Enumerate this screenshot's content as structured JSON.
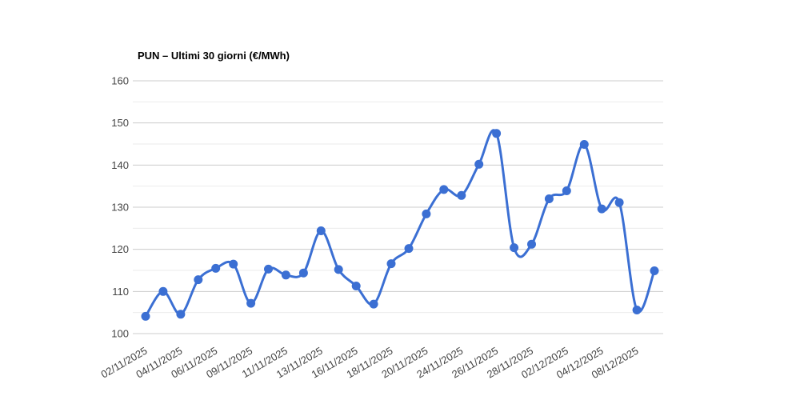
{
  "chart_data": {
    "type": "line",
    "title": "PUN – Ultimi 30 giorni (€/MWh)",
    "series": [
      {
        "name": "PUN",
        "values": [
          104.1,
          110.0,
          104.6,
          112.8,
          115.5,
          116.5,
          107.2,
          115.3,
          113.9,
          114.4,
          124.4,
          115.2,
          111.3,
          107.0,
          116.6,
          120.2,
          128.4,
          134.2,
          132.8,
          140.2,
          147.5,
          120.4,
          121.2,
          132.0,
          133.9,
          144.9,
          129.6,
          131.1,
          105.6,
          114.9
        ]
      }
    ],
    "x_tick_labels": [
      "02/11/2025",
      "04/11/2025",
      "06/11/2025",
      "09/11/2025",
      "11/11/2025",
      "13/11/2025",
      "16/11/2025",
      "18/11/2025",
      "20/11/2025",
      "24/11/2025",
      "26/11/2025",
      "28/11/2025",
      "02/12/2025",
      "04/12/2025",
      "08/12/2025"
    ],
    "x_tick_every": 2,
    "y_ticks": [
      100,
      110,
      120,
      130,
      140,
      150,
      160
    ],
    "ylim": [
      100,
      160
    ],
    "minor_grid_step": 5,
    "grid": true,
    "legend_position": "none",
    "smooth": true,
    "point_markers": true,
    "xlabel": "",
    "ylabel": "",
    "colors": {
      "series": "#3b6fd3",
      "grid_major": "#cccccc",
      "grid_minor": "#ebebeb",
      "tick_label": "#444444",
      "title": "#000000",
      "background": "#ffffff"
    }
  }
}
